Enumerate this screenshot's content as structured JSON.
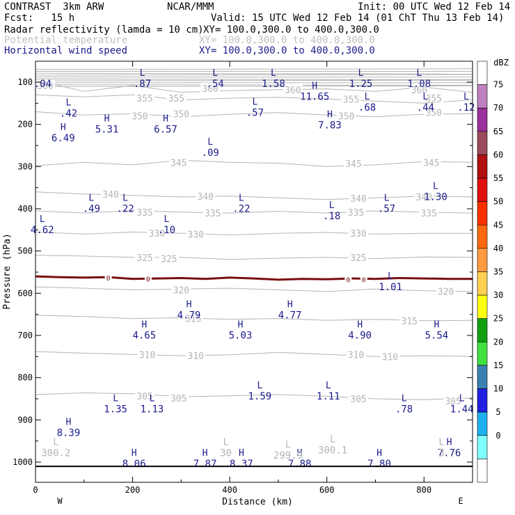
{
  "header": {
    "line1_left": "CONTRAST  3km ARW",
    "line1_mid": "NCAR/MMM",
    "line1_right": "Init: 00 UTC Wed 12 Feb 14",
    "line2_left": "Fcst:   15 h",
    "line2_right": "Valid: 15 UTC Wed 12 Feb 14 (01 ChT Thu 13 Feb 14)",
    "field1": "Radar reflectivity (lamda = 10 cm)",
    "field1_xy": "XY= 100.0,300.0 to 400.0,300.0",
    "field2": "Potential temperature",
    "field2_xy": "XY= 100.0,300.0 to 400.0,300.0",
    "field3": "Horizontal wind speed",
    "field3_xy": "XY= 100.0,300.0 to 400.0,300.0"
  },
  "colors": {
    "theta": "#b4b4b4",
    "wind": "#1a1a8c",
    "zero_line": "#7a0e0e"
  },
  "chart_data": {
    "type": "cross-section",
    "xlabel": "Distance (km)",
    "ylabel": "Pressure (hPa)",
    "xlim": [
      0,
      900
    ],
    "ylim": [
      1050,
      60
    ],
    "x_ticks": [
      "0",
      "200",
      "400",
      "600",
      "800"
    ],
    "x_tick_values": [
      0,
      200,
      400,
      600,
      800
    ],
    "y_ticks": [
      "100",
      "200",
      "300",
      "400",
      "500",
      "600",
      "700",
      "800",
      "900",
      "1000"
    ],
    "y_tick_values": [
      100,
      200,
      300,
      400,
      500,
      600,
      700,
      800,
      900,
      1000
    ],
    "x_end_labels": {
      "left": "W",
      "right": "E"
    },
    "colorbar": {
      "unit": "dBZ",
      "labels": [
        "75",
        "70",
        "65",
        "60",
        "55",
        "50",
        "45",
        "40",
        "35",
        "30",
        "25",
        "20",
        "15",
        "10",
        "5",
        "0"
      ],
      "colors": [
        "#ffffff",
        "#c080c0",
        "#9a309a",
        "#9a4a5a",
        "#b01010",
        "#e01010",
        "#ff3000",
        "#ff6a10",
        "#ff9a40",
        "#ffd050",
        "#ffff10",
        "#10a010",
        "#40e040",
        "#3a80b0",
        "#2020e0",
        "#20b0f0",
        "#80ffff",
        "#ffffff"
      ]
    },
    "theta_contours": [
      {
        "level": 360,
        "p": [
          95,
          122,
          108,
          124,
          120,
          118,
          116,
          122,
          112,
          124
        ]
      },
      {
        "level": 355,
        "p": [
          130,
          135,
          130,
          142,
          138,
          136,
          140,
          145,
          150,
          142
        ]
      },
      {
        "level": 350,
        "p": [
          170,
          178,
          175,
          182,
          176,
          172,
          178,
          182,
          176,
          175
        ]
      },
      {
        "level": 345,
        "p": [
          298,
          290,
          296,
          285,
          290,
          292,
          300,
          296,
          288,
          290
        ]
      },
      {
        "level": 340,
        "p": [
          360,
          365,
          368,
          372,
          370,
          374,
          378,
          374,
          370,
          372
        ]
      },
      {
        "level": 335,
        "p": [
          405,
          410,
          404,
          408,
          410,
          406,
          410,
          405,
          408,
          410
        ]
      },
      {
        "level": 330,
        "p": [
          455,
          460,
          455,
          458,
          462,
          458,
          456,
          460,
          458,
          458
        ]
      },
      {
        "level": 325,
        "p": [
          510,
          512,
          515,
          515,
          520,
          517,
          515,
          518,
          514,
          515
        ]
      },
      {
        "level": 320,
        "p": [
          585,
          588,
          592,
          590,
          588,
          592,
          596,
          590,
          594,
          596
        ]
      },
      {
        "level": 315,
        "p": [
          652,
          655,
          660,
          658,
          662,
          660,
          664,
          662,
          665,
          664
        ]
      },
      {
        "level": 310,
        "p": [
          738,
          742,
          745,
          748,
          746,
          740,
          745,
          750,
          748,
          750
        ]
      },
      {
        "level": 305,
        "p": [
          840,
          836,
          838,
          845,
          843,
          840,
          844,
          850,
          852,
          848
        ]
      }
    ],
    "theta_labels": [
      {
        "t": "360",
        "x": 20,
        "p": 108
      },
      {
        "t": "355",
        "x": 225,
        "p": 138
      },
      {
        "t": "355",
        "x": 290,
        "p": 138
      },
      {
        "t": "360",
        "x": 360,
        "p": 115
      },
      {
        "t": "360",
        "x": 530,
        "p": 118
      },
      {
        "t": "355",
        "x": 650,
        "p": 140
      },
      {
        "t": "360",
        "x": 790,
        "p": 118
      },
      {
        "t": "355",
        "x": 820,
        "p": 138
      },
      {
        "t": "350",
        "x": 215,
        "p": 180
      },
      {
        "t": "350",
        "x": 300,
        "p": 175
      },
      {
        "t": "350",
        "x": 640,
        "p": 180
      },
      {
        "t": "350",
        "x": 820,
        "p": 172
      },
      {
        "t": "345",
        "x": 295,
        "p": 290
      },
      {
        "t": "345",
        "x": 655,
        "p": 293
      },
      {
        "t": "345",
        "x": 815,
        "p": 290
      },
      {
        "t": "340",
        "x": 155,
        "p": 365
      },
      {
        "t": "340",
        "x": 350,
        "p": 370
      },
      {
        "t": "340",
        "x": 665,
        "p": 375
      },
      {
        "t": "340",
        "x": 800,
        "p": 372
      },
      {
        "t": "335",
        "x": 225,
        "p": 408
      },
      {
        "t": "335",
        "x": 365,
        "p": 410
      },
      {
        "t": "335",
        "x": 660,
        "p": 408
      },
      {
        "t": "335",
        "x": 810,
        "p": 410
      },
      {
        "t": "330",
        "x": 250,
        "p": 458
      },
      {
        "t": "330",
        "x": 330,
        "p": 460
      },
      {
        "t": "330",
        "x": 665,
        "p": 458
      },
      {
        "t": "325",
        "x": 225,
        "p": 515
      },
      {
        "t": "325",
        "x": 275,
        "p": 518
      },
      {
        "t": "325",
        "x": 665,
        "p": 515
      },
      {
        "t": "320",
        "x": 300,
        "p": 592
      },
      {
        "t": "320",
        "x": 845,
        "p": 595
      },
      {
        "t": "315",
        "x": 325,
        "p": 660
      },
      {
        "t": "315",
        "x": 770,
        "p": 665
      },
      {
        "t": "310",
        "x": 230,
        "p": 745
      },
      {
        "t": "310",
        "x": 330,
        "p": 748
      },
      {
        "t": "310",
        "x": 660,
        "p": 745
      },
      {
        "t": "310",
        "x": 730,
        "p": 750
      },
      {
        "t": "305",
        "x": 225,
        "p": 843
      },
      {
        "t": "305",
        "x": 295,
        "p": 848
      },
      {
        "t": "305",
        "x": 665,
        "p": 850
      },
      {
        "t": "305",
        "x": 860,
        "p": 855
      }
    ],
    "zero_line_labels": [
      {
        "t": "0",
        "x": 150,
        "p": 563
      },
      {
        "t": "0",
        "x": 232,
        "p": 566
      },
      {
        "t": "0",
        "x": 644,
        "p": 567
      },
      {
        "t": "0",
        "x": 676,
        "p": 567
      }
    ],
    "zero_line": [
      [
        0,
        560
      ],
      [
        50,
        562
      ],
      [
        100,
        563
      ],
      [
        150,
        562
      ],
      [
        200,
        566
      ],
      [
        250,
        565
      ],
      [
        300,
        564
      ],
      [
        350,
        566
      ],
      [
        400,
        563
      ],
      [
        450,
        565
      ],
      [
        500,
        568
      ],
      [
        550,
        566
      ],
      [
        600,
        567
      ],
      [
        650,
        565
      ],
      [
        700,
        566
      ],
      [
        750,
        564
      ],
      [
        800,
        565
      ],
      [
        850,
        566
      ],
      [
        900,
        566
      ]
    ],
    "wind_extrema": [
      {
        "letter": "",
        "value": ".04",
        "x": 15,
        "p": 92
      },
      {
        "letter": "L",
        "value": ".87",
        "x": 220,
        "p": 92
      },
      {
        "letter": "L",
        "value": ".54",
        "x": 370,
        "p": 92
      },
      {
        "letter": "L",
        "value": "1.58",
        "x": 490,
        "p": 92
      },
      {
        "letter": "H",
        "value": "11.65",
        "x": 575,
        "p": 122
      },
      {
        "letter": "L",
        "value": "1.25",
        "x": 670,
        "p": 92
      },
      {
        "letter": "L",
        "value": "1.08",
        "x": 790,
        "p": 92
      },
      {
        "letter": "L",
        "value": ".42",
        "x": 68,
        "p": 162
      },
      {
        "letter": "L",
        "value": ".57",
        "x": 452,
        "p": 160
      },
      {
        "letter": "L",
        "value": ".68",
        "x": 683,
        "p": 148
      },
      {
        "letter": "L",
        "value": ".44",
        "x": 803,
        "p": 148
      },
      {
        "letter": "L",
        "value": ".12",
        "x": 887,
        "p": 148
      },
      {
        "letter": "H",
        "value": "5.31",
        "x": 147,
        "p": 200
      },
      {
        "letter": "H",
        "value": "6.57",
        "x": 268,
        "p": 200
      },
      {
        "letter": "H",
        "value": "7.83",
        "x": 606,
        "p": 190
      },
      {
        "letter": "H",
        "value": "6.49",
        "x": 57,
        "p": 220
      },
      {
        "letter": "L",
        "value": ".09",
        "x": 360,
        "p": 255
      },
      {
        "letter": "L",
        "value": ".49",
        "x": 115,
        "p": 388
      },
      {
        "letter": "L",
        "value": ".22",
        "x": 185,
        "p": 388
      },
      {
        "letter": "L",
        "value": ".22",
        "x": 424,
        "p": 388
      },
      {
        "letter": "L",
        "value": "1.30",
        "x": 824,
        "p": 360
      },
      {
        "letter": "L",
        "value": ".57",
        "x": 723,
        "p": 388
      },
      {
        "letter": "L",
        "value": ".18",
        "x": 610,
        "p": 405
      },
      {
        "letter": "L",
        "value": "4.62",
        "x": 14,
        "p": 438
      },
      {
        "letter": "L",
        "value": ".10",
        "x": 270,
        "p": 438
      },
      {
        "letter": "L",
        "value": "1.01",
        "x": 731,
        "p": 573
      },
      {
        "letter": "H",
        "value": "4.79",
        "x": 316,
        "p": 640
      },
      {
        "letter": "H",
        "value": "4.77",
        "x": 524,
        "p": 640
      },
      {
        "letter": "H",
        "value": "4.65",
        "x": 224,
        "p": 688
      },
      {
        "letter": "H",
        "value": "5.03",
        "x": 422,
        "p": 688
      },
      {
        "letter": "H",
        "value": "4.90",
        "x": 668,
        "p": 688
      },
      {
        "letter": "H",
        "value": "5.54",
        "x": 826,
        "p": 688
      },
      {
        "letter": "L",
        "value": "1.59",
        "x": 462,
        "p": 832
      },
      {
        "letter": "L",
        "value": "1.11",
        "x": 603,
        "p": 832
      },
      {
        "letter": "L",
        "value": "1.35",
        "x": 165,
        "p": 862
      },
      {
        "letter": "L",
        "value": "1.13",
        "x": 240,
        "p": 862
      },
      {
        "letter": "L",
        "value": ".78",
        "x": 759,
        "p": 862
      },
      {
        "letter": "L",
        "value": "1.44",
        "x": 878,
        "p": 862
      },
      {
        "letter": "H",
        "value": "8.39",
        "x": 68,
        "p": 918
      },
      {
        "letter": "H",
        "value": "8.06",
        "x": 203,
        "p": 992
      },
      {
        "letter": "H",
        "value": "7.87",
        "x": 349,
        "p": 992
      },
      {
        "letter": "H",
        "value": "8.37",
        "x": 424,
        "p": 992
      },
      {
        "letter": "H",
        "value": "7.88",
        "x": 544,
        "p": 992
      },
      {
        "letter": "H",
        "value": "7.80",
        "x": 708,
        "p": 992
      },
      {
        "letter": "H",
        "value": "7.76",
        "x": 852,
        "p": 966
      }
    ],
    "surface_theta": [
      {
        "letter": "L",
        "value": "300.2",
        "x": 42,
        "p": 966
      },
      {
        "letter": "L",
        "value": "30",
        "x": 392,
        "p": 966
      },
      {
        "letter": "L",
        "value": "299.9",
        "x": 520,
        "p": 972
      },
      {
        "letter": "L",
        "value": "300.1",
        "x": 612,
        "p": 960
      },
      {
        "letter": "L",
        "value": "3",
        "x": 836,
        "p": 966
      }
    ],
    "surface_p": 1010
  }
}
